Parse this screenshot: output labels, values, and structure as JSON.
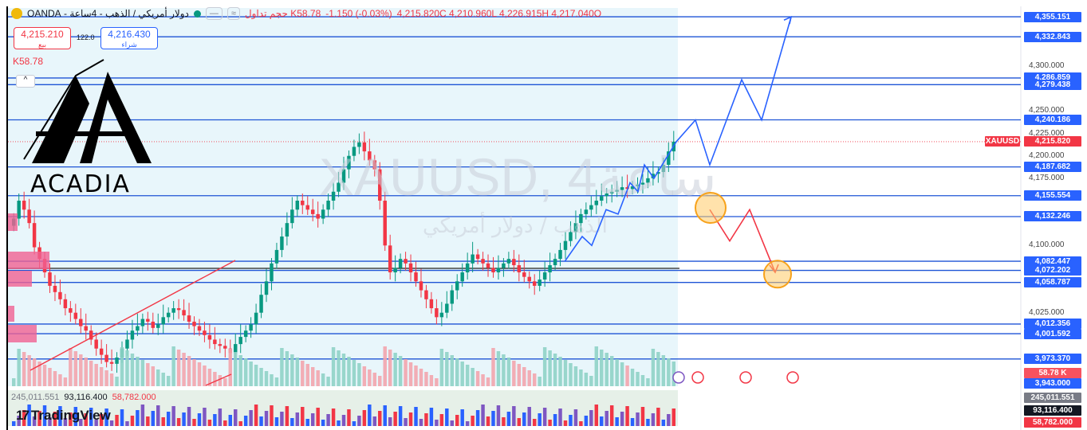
{
  "header": {
    "symbol_title": "دولار أمريكي / الذهب - 4ساعة - OANDA",
    "btn1": "—",
    "btn2": "≈",
    "volume_label": "حجم تداول K58.78",
    "change": "-1.150 (-0.03%)",
    "ohlc": "4,215.820C 4,210.960L 4,226.915H 4,217.040O",
    "volume_short": "K58.78",
    "collapse_glyph": "^"
  },
  "trade": {
    "sell_price": "4,215.210",
    "sell_label": "بيع",
    "buy_price": "4,216.430",
    "buy_label": "شراء",
    "spread": "122.0"
  },
  "logo": {
    "text": "ACADIA"
  },
  "brand": {
    "mark": "17",
    "name": "TradingView"
  },
  "watermark": {
    "symbol": "XAUUSD, 4ساعة",
    "subtitle": "الذهب / دولار أمريكي"
  },
  "volume_pane": {
    "v1": "245,011.551",
    "v2": "93,116.400",
    "v3": "58,782.000"
  },
  "chart_data": {
    "type": "candlestick",
    "symbol": "XAUUSD",
    "timeframe": "4ساعة",
    "last_price": 4215.82,
    "last_price_tag": "XAUUSD",
    "y_ticks": [
      4300,
      4250,
      4225,
      4200,
      4175,
      4100,
      4025
    ],
    "y_tick_labels": [
      "4,300.000",
      "4,250.000",
      "4,225.000",
      "4,200.000",
      "4,175.000",
      "4,100.000",
      "4,025.000"
    ],
    "ylim": [
      3943,
      4365
    ],
    "horizontal_levels": [
      4355.151,
      4332.843,
      4286.859,
      4279.438,
      4240.186,
      4187.682,
      4155.554,
      4132.246,
      4082.447,
      4072.202,
      4058.787,
      4012.356,
      4001.592,
      3973.37
    ],
    "horizontal_level_labels": [
      "4,355.151",
      "4,332.843",
      "4,286.859",
      "4,279.438",
      "4,240.186",
      "4,187.682",
      "4,155.554",
      "4,132.246",
      "4,082.447",
      "4,072.202",
      "4,058.787",
      "4,012.356",
      "4,001.592",
      "3,973.370"
    ],
    "dark_level": 4074.5,
    "bottom_level_label": "3,943.000",
    "volume_tag": "58.78 K",
    "volume_axis_labels": [
      "245,011.551",
      "93,116.400",
      "58,782.000"
    ],
    "closes": [
      4130,
      4150,
      4140,
      4125,
      4098,
      4085,
      4070,
      4055,
      4048,
      4040,
      4030,
      4025,
      4018,
      4010,
      4005,
      3995,
      3985,
      3978,
      3970,
      3968,
      3975,
      3985,
      3995,
      4005,
      4010,
      4018,
      4015,
      4008,
      4012,
      4020,
      4025,
      4030,
      4028,
      4022,
      4015,
      4010,
      4005,
      4000,
      3995,
      3990,
      3988,
      3985,
      3980,
      3990,
      3998,
      4005,
      4012,
      4025,
      4045,
      4060,
      4080,
      4095,
      4110,
      4125,
      4140,
      4150,
      4145,
      4140,
      4135,
      4130,
      4140,
      4150,
      4160,
      4170,
      4185,
      4200,
      4210,
      4215,
      4205,
      4195,
      4185,
      4150,
      4100,
      4070,
      4075,
      4085,
      4080,
      4070,
      4060,
      4050,
      4040,
      4030,
      4020,
      4025,
      4035,
      4050,
      4060,
      4070,
      4080,
      4090,
      4085,
      4080,
      4075,
      4070,
      4075,
      4080,
      4085,
      4078,
      4070,
      4065,
      4060,
      4055,
      4062,
      4070,
      4078,
      4085,
      4095,
      4105,
      4115,
      4125,
      4135,
      4140,
      4145,
      4150,
      4155,
      4158,
      4160,
      4162,
      4165,
      4163,
      4166,
      4168,
      4170,
      4175,
      4180,
      4182,
      4190,
      4205,
      4215.82
    ],
    "drawn_path_up": [
      [
        4082,
        4110,
        4100,
        4140,
        4135,
        4170,
        4160,
        4190,
        4175,
        4215.82,
        4240,
        4190,
        4285,
        4240,
        4355
      ]
    ],
    "drawn_path_down": [
      4140,
      4105,
      4140,
      4070
    ],
    "target_circles": [
      4142,
      4068
    ]
  }
}
